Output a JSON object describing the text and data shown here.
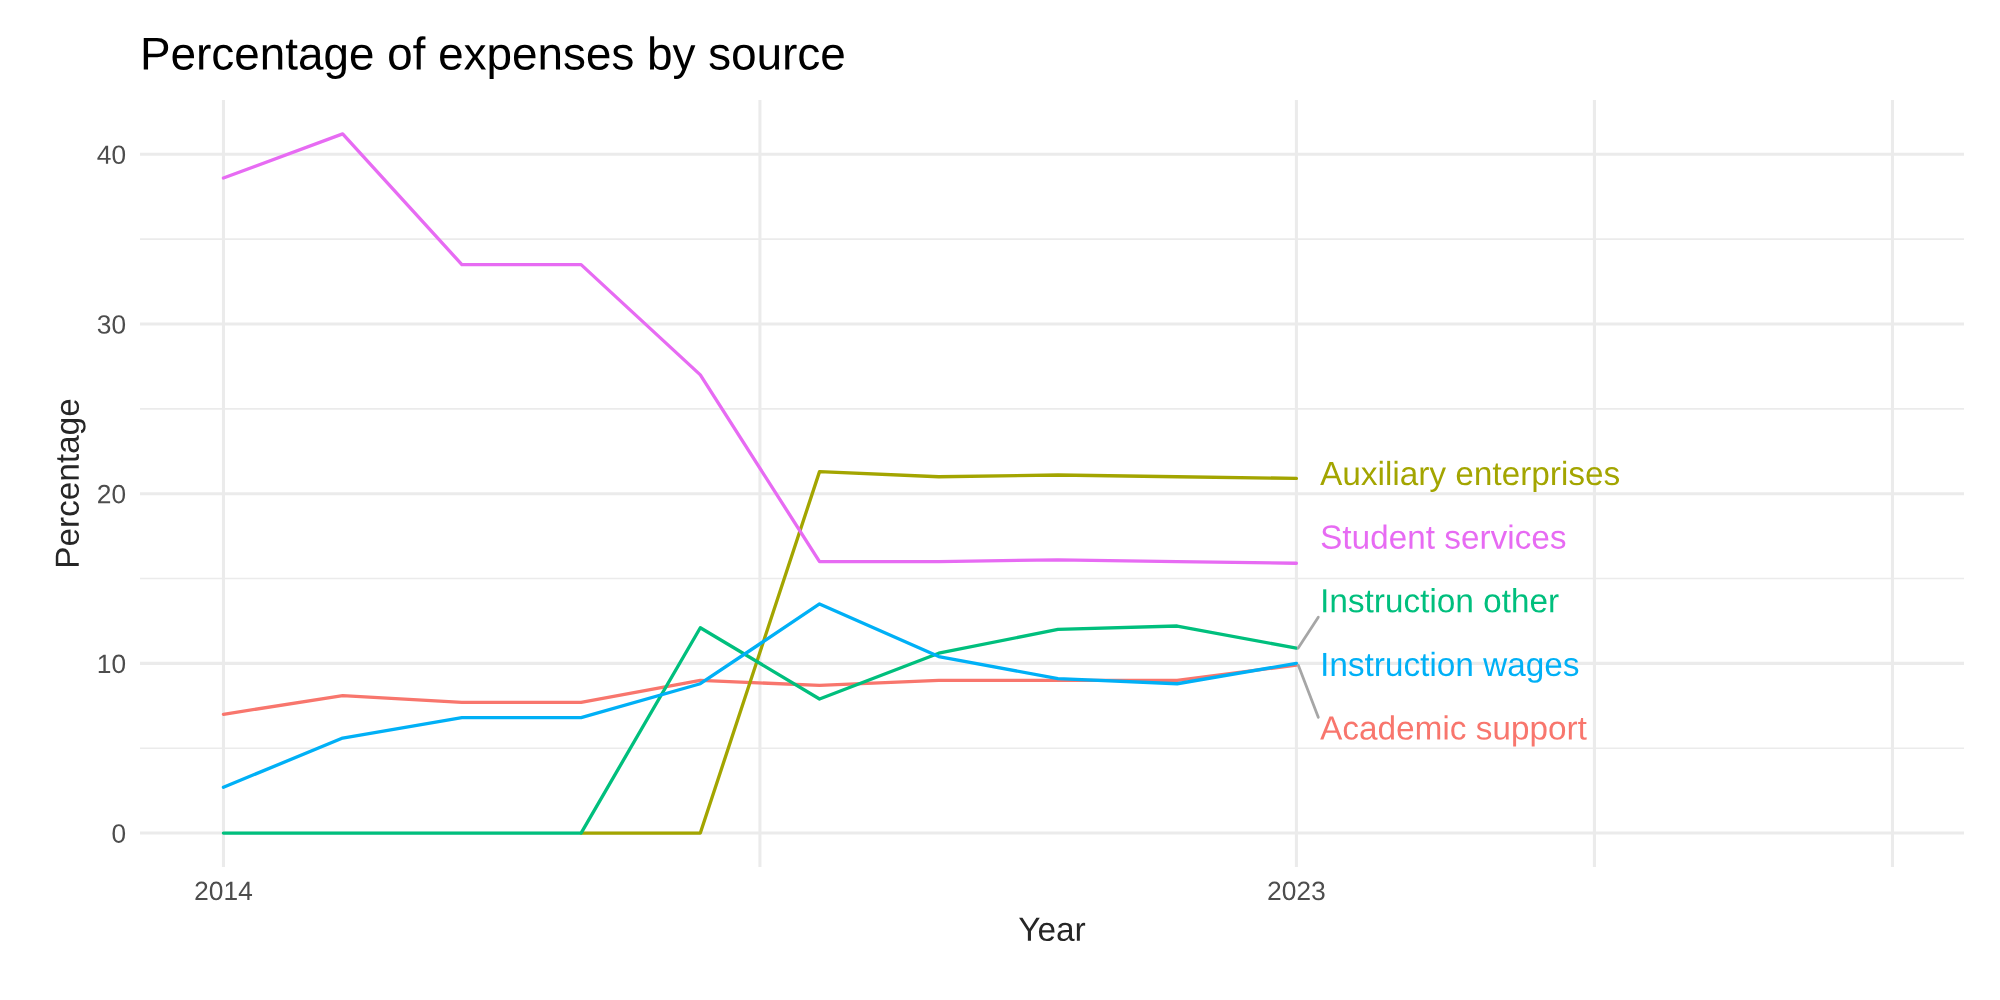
{
  "chart_data": {
    "type": "line",
    "title": "Percentage of expenses by source",
    "xlabel": "Year",
    "ylabel": "Percentage",
    "x": [
      2014,
      2015,
      2016,
      2017,
      2018,
      2019,
      2020,
      2021,
      2022,
      2023
    ],
    "series": [
      {
        "name": "Academic support",
        "color": "#f8766d",
        "values": [
          7.0,
          8.1,
          7.7,
          7.7,
          9.0,
          8.7,
          9.0,
          9.0,
          9.0,
          9.9
        ]
      },
      {
        "name": "Auxiliary enterprises",
        "color": "#a3a500",
        "values": [
          null,
          null,
          null,
          0,
          0,
          21.3,
          21.0,
          21.1,
          21.0,
          20.9
        ]
      },
      {
        "name": "Instruction other",
        "color": "#00bf7d",
        "values": [
          0,
          0,
          0,
          0,
          12.1,
          7.9,
          10.6,
          12.0,
          12.2,
          10.9
        ]
      },
      {
        "name": "Instruction wages",
        "color": "#00b0f6",
        "values": [
          2.7,
          5.6,
          6.8,
          6.8,
          8.8,
          13.5,
          10.4,
          9.1,
          8.8,
          10.0
        ]
      },
      {
        "name": "Student services",
        "color": "#e76bf3",
        "values": [
          38.6,
          41.2,
          33.5,
          33.5,
          27.0,
          16.0,
          16.0,
          16.1,
          16.0,
          15.9
        ]
      }
    ],
    "xlim": [
      2013.3,
      2028.6
    ],
    "xticks": [
      2014,
      {
        "value": 2018.5,
        "label": null
      },
      2023,
      {
        "value": 2025.5,
        "label": null
      },
      {
        "value": 2028,
        "label": null
      }
    ],
    "ylim": [
      -2,
      43.2
    ],
    "yticks": [
      0,
      10,
      20,
      30,
      40
    ],
    "grid": true,
    "legend": false,
    "line_style": "solid",
    "marker": "none"
  }
}
